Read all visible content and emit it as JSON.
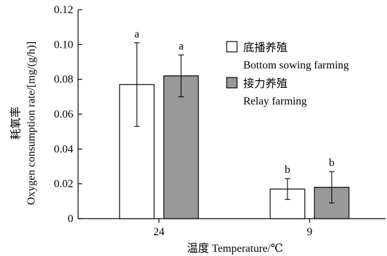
{
  "chart_data": {
    "type": "bar",
    "categories": [
      "24",
      "9"
    ],
    "series": [
      {
        "name": "底播养殖",
        "name_en": "Bottom sowing farming",
        "color": "#ffffff",
        "values": [
          0.077,
          0.017
        ],
        "errors": [
          0.024,
          0.006
        ],
        "significance": [
          "a",
          "b"
        ]
      },
      {
        "name": "接力养殖",
        "name_en": "Relay farming",
        "color": "#999999",
        "values": [
          0.082,
          0.018
        ],
        "errors": [
          0.012,
          0.009
        ],
        "significance": [
          "a",
          "b"
        ]
      }
    ],
    "xlabel": "温度 Temperature/℃",
    "ylabel_zh": "耗氧率",
    "ylabel": "Oxygen consumption rate/[mg/(g/h)]",
    "ylim": [
      0,
      0.12
    ],
    "yticks": [
      0,
      0.02,
      0.04,
      0.06,
      0.08,
      0.1,
      0.12
    ],
    "ytick_labels": [
      "0",
      "0.02",
      "0.04",
      "0.06",
      "0.08",
      "0.10",
      "0.12"
    ],
    "legend_position": "top-right",
    "grid": false
  }
}
